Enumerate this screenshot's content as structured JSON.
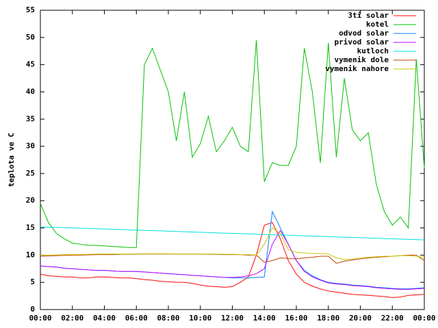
{
  "chart_data": {
    "type": "line",
    "ylabel": "teplota ve C",
    "legend": "top right",
    "x": [
      0,
      0.5,
      1,
      1.5,
      2,
      2.5,
      3,
      3.5,
      4,
      4.5,
      5,
      5.5,
      6,
      6.5,
      7,
      7.5,
      8,
      8.5,
      9,
      9.5,
      10,
      10.5,
      11,
      11.5,
      12,
      12.5,
      13,
      13.5,
      14,
      14.5,
      15,
      15.5,
      16,
      16.5,
      17,
      17.5,
      18,
      18.5,
      19,
      19.5,
      20,
      20.5,
      21,
      21.5,
      22,
      22.5,
      23,
      23.5,
      24
    ],
    "xlim": [
      0,
      24
    ],
    "xticks": [
      {
        "value": 0,
        "label": "00:00"
      },
      {
        "value": 2,
        "label": "02:00"
      },
      {
        "value": 4,
        "label": "04:00"
      },
      {
        "value": 6,
        "label": "06:00"
      },
      {
        "value": 8,
        "label": "08:00"
      },
      {
        "value": 10,
        "label": "10:00"
      },
      {
        "value": 12,
        "label": "12:00"
      },
      {
        "value": 14,
        "label": "14:00"
      },
      {
        "value": 16,
        "label": "16:00"
      },
      {
        "value": 18,
        "label": "18:00"
      },
      {
        "value": 20,
        "label": "20:00"
      },
      {
        "value": 22,
        "label": "22:00"
      },
      {
        "value": 24,
        "label": "00:00"
      }
    ],
    "ylim": [
      0,
      55
    ],
    "yticks": [
      0,
      5,
      10,
      15,
      20,
      25,
      30,
      35,
      40,
      45,
      50,
      55
    ],
    "series": [
      {
        "name": "3ti solar",
        "color": "#ff0000",
        "values": [
          6.5,
          6.2,
          6.1,
          6,
          6,
          5.8,
          5.8,
          6,
          6,
          5.9,
          5.8,
          5.8,
          5.7,
          5.5,
          5.4,
          5.2,
          5.1,
          5,
          5,
          4.8,
          4.5,
          4.3,
          4.2,
          4.1,
          4.2,
          5,
          6,
          10,
          15.5,
          16,
          13,
          9,
          6.5,
          5,
          4.3,
          3.8,
          3.4,
          3.2,
          3,
          2.8,
          2.7,
          2.6,
          2.5,
          2.4,
          2.2,
          2.3,
          2.6,
          2.7,
          2.8
        ]
      },
      {
        "name": "kotel",
        "color": "#00c000",
        "values": [
          19.5,
          16,
          14,
          13,
          12.2,
          12,
          11.8,
          11.8,
          11.7,
          11.6,
          11.5,
          11.4,
          11.4,
          45,
          48,
          44,
          40,
          31,
          40,
          28,
          30.5,
          35.5,
          29,
          31,
          33.5,
          30,
          29,
          49.5,
          23.5,
          27,
          26.5,
          26.5,
          30,
          48,
          40,
          27,
          49,
          28,
          42.5,
          33,
          31,
          32.5,
          23,
          18,
          15.5,
          17,
          15,
          46,
          26
        ]
      },
      {
        "name": "odvod solar",
        "color": "#0080ff",
        "values": [
          8,
          7.9,
          7.8,
          7.6,
          7.5,
          7.4,
          7.3,
          7.2,
          7.2,
          7.1,
          7,
          7,
          7,
          6.9,
          6.8,
          6.7,
          6.6,
          6.5,
          6.4,
          6.3,
          6.2,
          6.1,
          6,
          5.9,
          5.8,
          5.8,
          5.8,
          5.9,
          6,
          18,
          15,
          12,
          9,
          7.2,
          6.2,
          5.5,
          5,
          4.8,
          4.7,
          4.5,
          4.4,
          4.3,
          4.1,
          4,
          3.9,
          3.8,
          3.8,
          3.9,
          4
        ]
      },
      {
        "name": "privod solar",
        "color": "#c000ff",
        "values": [
          8,
          7.9,
          7.8,
          7.6,
          7.5,
          7.4,
          7.3,
          7.2,
          7.2,
          7.1,
          7,
          7,
          7,
          6.9,
          6.8,
          6.7,
          6.6,
          6.5,
          6.4,
          6.3,
          6.2,
          6.1,
          6,
          5.9,
          5.9,
          6,
          6.2,
          6.6,
          7.5,
          12,
          14.5,
          12,
          9,
          7,
          6,
          5.4,
          4.9,
          4.7,
          4.6,
          4.4,
          4.3,
          4.2,
          4,
          3.9,
          3.8,
          3.7,
          3.7,
          3.8,
          3.9
        ]
      },
      {
        "name": "kutloch",
        "color": "#00e0e0",
        "values": [
          15.2,
          15.15,
          15.1,
          15.05,
          15,
          14.95,
          14.9,
          14.85,
          14.8,
          14.75,
          14.7,
          14.65,
          14.6,
          14.55,
          14.5,
          14.45,
          14.4,
          14.35,
          14.3,
          14.25,
          14.2,
          14.15,
          14.1,
          14.05,
          14,
          13.95,
          13.9,
          13.85,
          13.8,
          13.75,
          13.7,
          13.65,
          13.6,
          13.55,
          13.5,
          13.45,
          13.4,
          13.35,
          13.3,
          13.25,
          13.2,
          13.15,
          13.1,
          13.05,
          13,
          12.95,
          12.9,
          12.85,
          12.8
        ]
      },
      {
        "name": "vymenik dole",
        "color": "#c04000",
        "values": [
          9.8,
          9.85,
          9.9,
          9.95,
          10,
          10,
          10.05,
          10.1,
          10.1,
          10.1,
          10.15,
          10.15,
          10.2,
          10.2,
          10.2,
          10.2,
          10.2,
          10.2,
          10.2,
          10.2,
          10.2,
          10.15,
          10.15,
          10.1,
          10.1,
          10.1,
          10,
          10,
          8.7,
          9,
          9.5,
          9.4,
          9.3,
          9.5,
          9.6,
          9.8,
          9.8,
          8.5,
          8.9,
          9.1,
          9.3,
          9.5,
          9.6,
          9.7,
          9.8,
          9.9,
          10,
          10,
          9
        ]
      },
      {
        "name": "vymenik nahore",
        "color": "#c8c800",
        "values": [
          10,
          10,
          10.05,
          10.1,
          10.1,
          10.1,
          10.15,
          10.2,
          10.2,
          10.2,
          10.2,
          10.2,
          10.25,
          10.25,
          10.25,
          10.25,
          10.25,
          10.2,
          10.2,
          10.2,
          10.2,
          10.2,
          10.2,
          10.15,
          10.15,
          10.1,
          10.1,
          10,
          12,
          15,
          14,
          11,
          10.5,
          10.4,
          10.3,
          10.3,
          10.2,
          9.5,
          9.2,
          9.3,
          9.5,
          9.6,
          9.7,
          9.8,
          9.8,
          9.9,
          9.9,
          9.8,
          9.6
        ]
      }
    ]
  }
}
